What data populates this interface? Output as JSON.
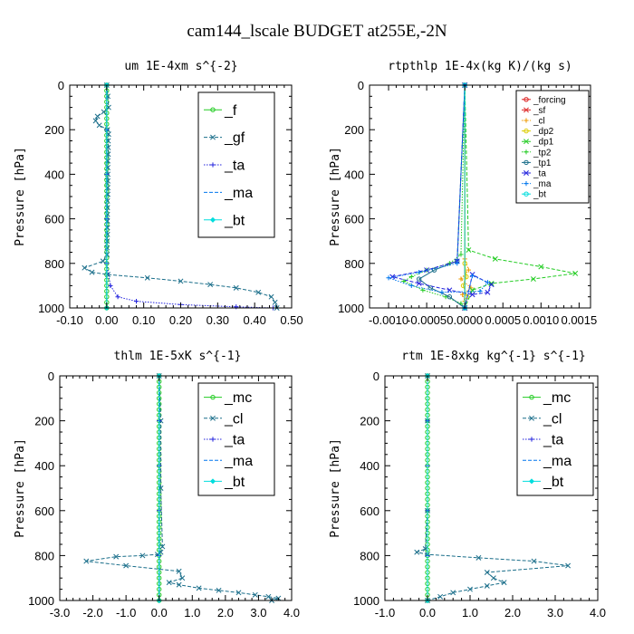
{
  "figure": {
    "title": "cam144_lscale  BUDGET at255E,-2N"
  },
  "colors": {
    "green": "#22cc22",
    "teal": "#1a6e8a",
    "blue": "#2222dd",
    "lightblue": "#0077ee",
    "cyan": "#00dddd",
    "red": "#dd2222",
    "orange": "#ee9900",
    "yellow": "#ddcc00"
  },
  "chart_data": [
    {
      "type": "line",
      "title": "um   1E-4xm s^{-2}",
      "ylabel": "Pressure [hPa]",
      "xlim": [
        -0.1,
        0.5
      ],
      "ylim": [
        1000,
        0
      ],
      "xticks": [
        "-0.10",
        "0.00",
        "0.10",
        "0.20",
        "0.30",
        "0.40",
        "0.50"
      ],
      "xtick_values": [
        -0.1,
        0.0,
        0.1,
        0.2,
        0.3,
        0.4,
        0.5
      ],
      "yticks": [
        "0",
        "200",
        "400",
        "600",
        "800",
        "1000"
      ],
      "ytick_values": [
        0,
        200,
        400,
        600,
        800,
        1000
      ],
      "legend_font": 16,
      "series": [
        {
          "name": "_f",
          "color": "#22cc22",
          "marker": "o",
          "linestyle": "solid",
          "x": [
            0,
            0,
            0,
            0,
            0,
            0,
            0,
            0,
            0,
            0,
            0,
            0,
            0,
            0,
            0,
            0,
            0,
            0,
            0,
            0,
            0,
            0,
            0,
            0,
            0,
            0,
            0,
            0,
            0,
            0,
            0,
            0,
            0,
            0,
            0,
            0,
            0,
            0,
            0,
            0,
            0
          ],
          "y": [
            0,
            25,
            50,
            75,
            100,
            125,
            150,
            175,
            200,
            225,
            250,
            275,
            300,
            325,
            350,
            375,
            400,
            425,
            450,
            475,
            500,
            525,
            550,
            575,
            600,
            625,
            650,
            675,
            700,
            725,
            750,
            775,
            800,
            825,
            850,
            875,
            900,
            925,
            950,
            975,
            1000
          ]
        },
        {
          "name": "_gf",
          "color": "#1a6e8a",
          "marker": "x",
          "linestyle": "dashed",
          "x": [
            0.0,
            0.003,
            0.005,
            -0.008,
            -0.025,
            -0.03,
            -0.02,
            0.002,
            0.005,
            0.004,
            0.004,
            0.004,
            0.003,
            0.003,
            0.003,
            0.003,
            0.003,
            0.003,
            0.002,
            0.002,
            0.002,
            0.002,
            0.002,
            0.002,
            0.001,
            0.001,
            0.001,
            -0.01,
            -0.06,
            -0.04,
            0.003,
            0.11,
            0.2,
            0.28,
            0.35,
            0.41,
            0.445,
            0.455,
            0.46
          ],
          "y": [
            0,
            50,
            100,
            120,
            140,
            160,
            180,
            200,
            220,
            250,
            280,
            310,
            340,
            370,
            400,
            430,
            460,
            490,
            520,
            550,
            580,
            610,
            640,
            670,
            700,
            730,
            760,
            790,
            820,
            840,
            850,
            865,
            880,
            895,
            910,
            930,
            950,
            975,
            1000
          ]
        },
        {
          "name": "_ta",
          "color": "#2222dd",
          "marker": "+",
          "linestyle": "dotted",
          "x": [
            0,
            0,
            0,
            0,
            0,
            0.01,
            0.03,
            0.08,
            0.2,
            0.35,
            0.45
          ],
          "y": [
            0,
            200,
            400,
            600,
            800,
            900,
            950,
            970,
            985,
            995,
            1000
          ]
        },
        {
          "name": "_ma",
          "color": "#0077ee",
          "marker": "none",
          "linestyle": "dashed",
          "x": [
            0,
            0
          ],
          "y": [
            0,
            1000
          ]
        },
        {
          "name": "_bt",
          "color": "#00dddd",
          "marker": "diamond",
          "linestyle": "solid",
          "x": [
            0,
            0
          ],
          "y": [
            0,
            1000
          ]
        }
      ]
    },
    {
      "type": "line",
      "title": "rtpthlp   1E-4x(kg K)/(kg s)",
      "ylabel": "Pressure [hPa]",
      "xlim": [
        -0.00125,
        0.00165
      ],
      "ylim": [
        1000,
        0
      ],
      "xticks": [
        "-0.0010",
        "-0.0005",
        "0.0000",
        "0.0005",
        "0.0010",
        "0.0015"
      ],
      "xtick_values": [
        -0.001,
        -0.0005,
        0.0,
        0.0005,
        0.001,
        0.0015
      ],
      "yticks": [
        "0",
        "200",
        "400",
        "600",
        "800",
        "1000"
      ],
      "ytick_values": [
        0,
        200,
        400,
        600,
        800,
        1000
      ],
      "legend_font": 10,
      "series": [
        {
          "name": "_forcing",
          "color": "#dd2222",
          "marker": "o",
          "linestyle": "solid",
          "x": [
            0,
            0
          ],
          "y": [
            0,
            1000
          ]
        },
        {
          "name": "_sf",
          "color": "#dd2222",
          "marker": "x",
          "linestyle": "dashed",
          "x": [
            0,
            0
          ],
          "y": [
            0,
            1000
          ]
        },
        {
          "name": "_cl",
          "color": "#ee9900",
          "marker": "+",
          "linestyle": "dotted",
          "x": [
            0,
            0,
            5e-05,
            -5e-05,
            8e-05,
            -3e-05,
            0,
            0
          ],
          "y": [
            0,
            780,
            830,
            870,
            910,
            940,
            970,
            1000
          ]
        },
        {
          "name": "_dp2",
          "color": "#ddcc00",
          "marker": "o",
          "linestyle": "solid",
          "x": [
            0,
            0,
            2e-05,
            -2e-05,
            3e-05,
            0
          ],
          "y": [
            0,
            800,
            860,
            900,
            950,
            1000
          ]
        },
        {
          "name": "_dp1",
          "color": "#22cc22",
          "marker": "x",
          "linestyle": "dashed",
          "x": [
            0,
            5e-05,
            0.0004,
            0.001,
            0.00145,
            0.0009,
            0.00035,
            0.0001,
            0
          ],
          "y": [
            0,
            740,
            780,
            815,
            845,
            870,
            890,
            920,
            1000
          ]
        },
        {
          "name": "_tp2",
          "color": "#22cc22",
          "marker": "+",
          "linestyle": "dotted",
          "x": [
            0,
            -5e-05,
            -0.0002,
            -0.0005,
            -0.0007,
            -0.0008,
            -0.00055,
            -0.00025,
            -5e-05,
            0
          ],
          "y": [
            0,
            760,
            800,
            830,
            860,
            880,
            920,
            950,
            980,
            1000
          ]
        },
        {
          "name": "_tp1",
          "color": "#1a6e8a",
          "marker": "o",
          "linestyle": "solid",
          "x": [
            0,
            -0.0001,
            -0.0004,
            -0.0006,
            -0.00045,
            -0.0002,
            0
          ],
          "y": [
            0,
            790,
            830,
            870,
            910,
            950,
            1000
          ]
        },
        {
          "name": "_ta",
          "color": "#2222dd",
          "marker": "x",
          "linestyle": "dashed",
          "x": [
            0,
            -0.0001,
            -0.0005,
            -0.00095,
            -0.0006,
            -0.0002,
            0.0001,
            0.0003,
            0.00035,
            0.0001,
            0
          ],
          "y": [
            0,
            790,
            830,
            860,
            890,
            920,
            940,
            930,
            895,
            850,
            1000
          ]
        },
        {
          "name": "_ma",
          "color": "#0077ee",
          "marker": "+",
          "linestyle": "dotted",
          "x": [
            0,
            -0.0001,
            -0.0006,
            -0.001,
            -0.0007,
            -0.0003,
            0.0002,
            0.0003,
            0.0001,
            0
          ],
          "y": [
            0,
            800,
            840,
            865,
            900,
            930,
            925,
            885,
            855,
            1000
          ]
        },
        {
          "name": "_bt",
          "color": "#00dddd",
          "marker": "o",
          "linestyle": "solid",
          "x": [
            0,
            0
          ],
          "y": [
            0,
            1000
          ]
        }
      ]
    },
    {
      "type": "line",
      "title": "thlm   1E-5xK s^{-1}",
      "ylabel": "Pressure [hPa]",
      "xlim": [
        -3.0,
        4.0
      ],
      "ylim": [
        1000,
        0
      ],
      "xticks": [
        "-3.0",
        "-2.0",
        "-1.0",
        "0.0",
        "1.0",
        "2.0",
        "3.0",
        "4.0"
      ],
      "xtick_values": [
        -3,
        -2,
        -1,
        0,
        1,
        2,
        3,
        4
      ],
      "yticks": [
        "0",
        "200",
        "400",
        "600",
        "800",
        "1000"
      ],
      "ytick_values": [
        0,
        200,
        400,
        600,
        800,
        1000
      ],
      "legend_font": 16,
      "series": [
        {
          "name": "_mc",
          "color": "#22cc22",
          "marker": "o",
          "linestyle": "solid",
          "x": [
            0,
            0,
            0,
            0,
            0,
            0,
            0,
            0,
            0,
            0,
            0,
            0,
            0,
            0,
            0,
            0,
            0,
            0,
            0,
            0,
            0,
            0,
            0,
            0,
            0,
            0,
            0,
            0,
            0,
            0,
            0,
            0,
            0,
            0,
            0,
            0,
            0,
            0,
            0,
            0,
            0
          ],
          "y": [
            0,
            25,
            50,
            75,
            100,
            125,
            150,
            175,
            200,
            225,
            250,
            275,
            300,
            325,
            350,
            375,
            400,
            425,
            450,
            475,
            500,
            525,
            550,
            575,
            600,
            625,
            650,
            675,
            700,
            725,
            750,
            775,
            800,
            825,
            850,
            875,
            900,
            925,
            950,
            975,
            1000
          ]
        },
        {
          "name": "_cl",
          "color": "#1a6e8a",
          "marker": "x",
          "linestyle": "dashed",
          "x": [
            0,
            0.05,
            0.05,
            0.1,
            0.05,
            -0.05,
            -0.5,
            -1.3,
            -2.2,
            -1.0,
            0.6,
            0.7,
            0.3,
            0.6,
            1.2,
            1.8,
            2.4,
            2.9,
            3.3,
            3.6,
            3.4
          ],
          "y": [
            0,
            200,
            500,
            760,
            785,
            795,
            800,
            805,
            825,
            845,
            870,
            900,
            920,
            930,
            945,
            955,
            965,
            975,
            983,
            990,
            1000
          ]
        },
        {
          "name": "_ta",
          "color": "#2222dd",
          "marker": "+",
          "linestyle": "dotted",
          "x": [
            0,
            0,
            0,
            0,
            0,
            0
          ],
          "y": [
            0,
            200,
            400,
            600,
            800,
            1000
          ]
        },
        {
          "name": "_ma",
          "color": "#0077ee",
          "marker": "none",
          "linestyle": "dashed",
          "x": [
            0,
            0
          ],
          "y": [
            0,
            1000
          ]
        },
        {
          "name": "_bt",
          "color": "#00dddd",
          "marker": "diamond",
          "linestyle": "solid",
          "x": [
            0,
            0
          ],
          "y": [
            0,
            1000
          ]
        }
      ]
    },
    {
      "type": "line",
      "title": "rtm   1E-8xkg kg^{-1} s^{-1}",
      "ylabel": "Pressure [hPa]",
      "xlim": [
        -1.0,
        4.0
      ],
      "ylim": [
        1000,
        0
      ],
      "xticks": [
        "-1.0",
        "0.0",
        "1.0",
        "2.0",
        "3.0",
        "4.0"
      ],
      "xtick_values": [
        -1,
        0,
        1,
        2,
        3,
        4
      ],
      "yticks": [
        "0",
        "200",
        "400",
        "600",
        "800",
        "1000"
      ],
      "ytick_values": [
        0,
        200,
        400,
        600,
        800,
        1000
      ],
      "legend_font": 16,
      "series": [
        {
          "name": "_mc",
          "color": "#22cc22",
          "marker": "o",
          "linestyle": "solid",
          "x": [
            0,
            0,
            0,
            0,
            0,
            0,
            0,
            0,
            0,
            0,
            0,
            0,
            0,
            0,
            0,
            0,
            0,
            0,
            0,
            0,
            0,
            0,
            0,
            0,
            0,
            0,
            0,
            0,
            0,
            0,
            0,
            0,
            0,
            0,
            0,
            0,
            0,
            0,
            0,
            0,
            0
          ],
          "y": [
            0,
            25,
            50,
            75,
            100,
            125,
            150,
            175,
            200,
            225,
            250,
            275,
            300,
            325,
            350,
            375,
            400,
            425,
            450,
            475,
            500,
            525,
            550,
            575,
            600,
            625,
            650,
            675,
            700,
            725,
            750,
            775,
            800,
            825,
            850,
            875,
            900,
            925,
            950,
            975,
            1000
          ]
        },
        {
          "name": "_cl",
          "color": "#1a6e8a",
          "marker": "x",
          "linestyle": "dashed",
          "x": [
            0,
            0,
            0,
            -0.05,
            -0.25,
            0.0,
            1.2,
            2.5,
            3.3,
            1.4,
            1.55,
            1.8,
            1.4,
            1.0,
            0.6,
            0.3,
            0.0
          ],
          "y": [
            0,
            200,
            600,
            770,
            785,
            795,
            810,
            825,
            845,
            875,
            900,
            920,
            935,
            950,
            965,
            983,
            1000
          ]
        },
        {
          "name": "_ta",
          "color": "#2222dd",
          "marker": "+",
          "linestyle": "dotted",
          "x": [
            0,
            0,
            0,
            0,
            0,
            0
          ],
          "y": [
            0,
            200,
            400,
            600,
            800,
            1000
          ]
        },
        {
          "name": "_ma",
          "color": "#0077ee",
          "marker": "none",
          "linestyle": "dashed",
          "x": [
            0,
            0
          ],
          "y": [
            0,
            1000
          ]
        },
        {
          "name": "_bt",
          "color": "#00dddd",
          "marker": "diamond",
          "linestyle": "solid",
          "x": [
            0,
            0
          ],
          "y": [
            0,
            1000
          ]
        }
      ]
    }
  ]
}
